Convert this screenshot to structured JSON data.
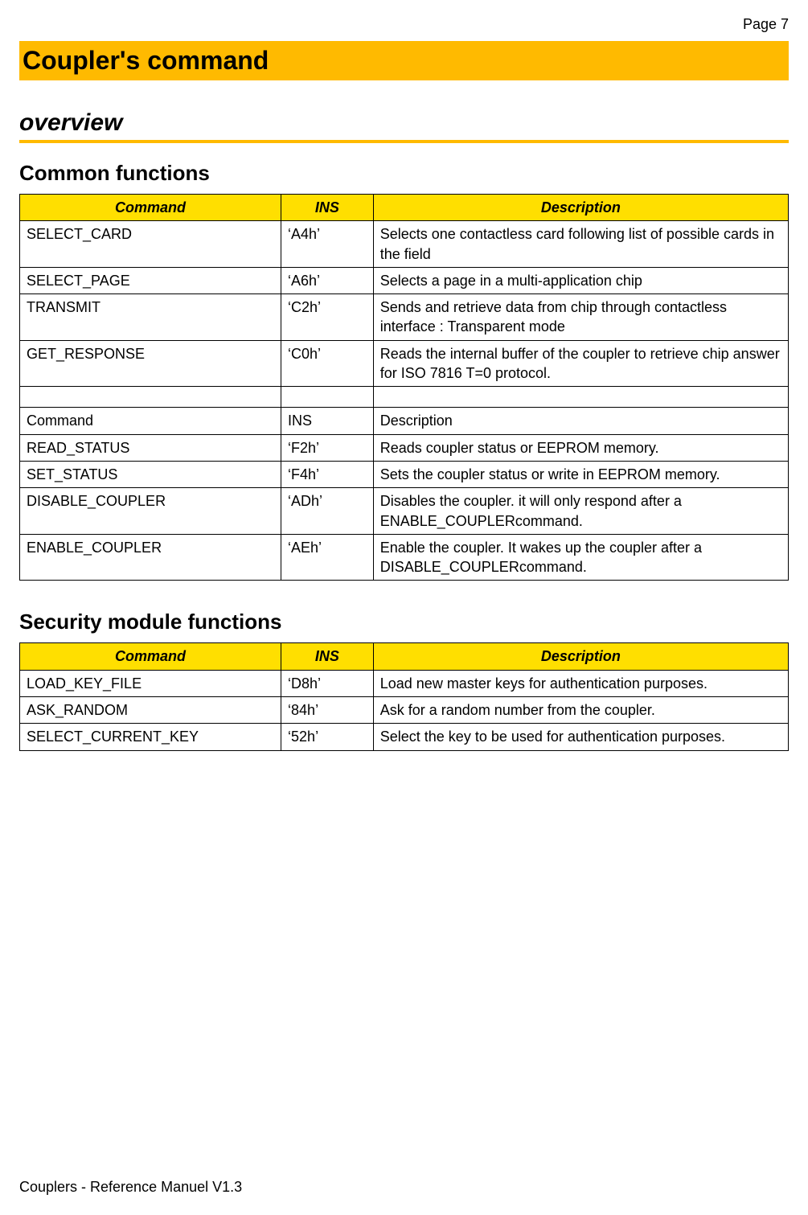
{
  "page_number": "Page 7",
  "main_title": "Coupler's command",
  "subtitle": "overview",
  "colors": {
    "title_bg": "#ffba00",
    "header_bg": "#ffdf00",
    "border": "#000000",
    "text": "#000000"
  },
  "section1_title": "Common functions",
  "table_headers": {
    "command": "Command",
    "ins": "INS",
    "description": "Description"
  },
  "t1": {
    "r0": {
      "cmd": "SELECT_CARD",
      "ins": "‘A4h’",
      "desc": "Selects one contactless card following list of possible cards in the field"
    },
    "r1": {
      "cmd": "SELECT_PAGE",
      "ins": "‘A6h’",
      "desc": "Selects a page in a multi-application chip"
    },
    "r2": {
      "cmd": "TRANSMIT",
      "ins": "‘C2h’",
      "desc": "Sends and retrieve data from chip through contactless interface : Transparent mode"
    },
    "r3": {
      "cmd": "GET_RESPONSE",
      "ins": "‘C0h’",
      "desc": "Reads the internal buffer of the coupler to retrieve chip answer for ISO 7816  T=0 protocol."
    },
    "r4": {
      "cmd": "",
      "ins": "",
      "desc": ""
    },
    "r5": {
      "cmd": "Command",
      "ins": "INS",
      "desc": "Description"
    },
    "r6": {
      "cmd": "READ_STATUS",
      "ins": "‘F2h’",
      "desc": "Reads coupler status or EEPROM memory."
    },
    "r7": {
      "cmd": "SET_STATUS",
      "ins": "‘F4h’",
      "desc": "Sets the coupler status or write in EEPROM memory."
    },
    "r8": {
      "cmd": "DISABLE_COUPLER",
      "ins": "‘ADh’",
      "desc": "Disables the coupler. it will only respond after a ENABLE_COUPLERcommand."
    },
    "r9": {
      "cmd": "ENABLE_COUPLER",
      "ins": "‘AEh’",
      "desc": "Enable the coupler. It wakes up the coupler after a DISABLE_COUPLERcommand."
    }
  },
  "section2_title": "Security module functions",
  "t2": {
    "r0": {
      "cmd": "LOAD_KEY_FILE",
      "ins": "‘D8h’",
      "desc": "Load new master keys for authentication purposes."
    },
    "r1": {
      "cmd": "ASK_RANDOM",
      "ins": "‘84h’",
      "desc": "Ask for a random number from the coupler."
    },
    "r2": {
      "cmd": "SELECT_CURRENT_KEY",
      "ins": "‘52h’",
      "desc": "Select the key to be used for authentication purposes."
    }
  },
  "footer": "Couplers - Reference Manuel V1.3"
}
